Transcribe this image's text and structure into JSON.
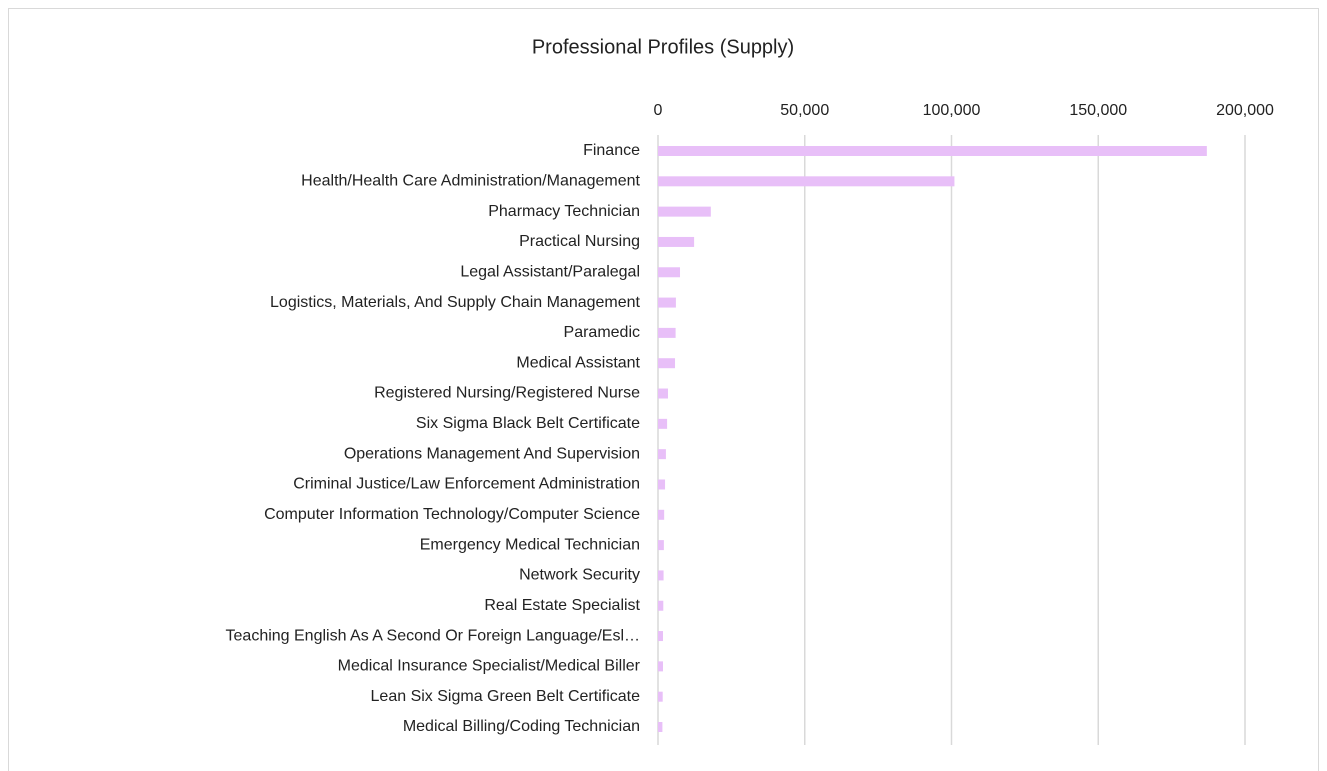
{
  "chart_data": {
    "type": "bar",
    "orientation": "horizontal",
    "title": "Professional Profiles (Supply)",
    "categories": [
      "Finance",
      "Health/Health Care Administration/Management",
      "Pharmacy Technician",
      "Practical Nursing",
      "Legal Assistant/Paralegal",
      "Logistics, Materials, And Supply Chain Management",
      "Paramedic",
      "Medical Assistant",
      "Registered Nursing/Registered Nurse",
      "Six Sigma Black Belt Certificate",
      "Operations Management And Supervision",
      "Criminal Justice/Law Enforcement Administration",
      "Computer Information Technology/Computer Science",
      "Emergency Medical Technician",
      "Network Security",
      "Real Estate Specialist",
      "Teaching English As A Second Or Foreign Language/Esl…",
      "Medical Insurance Specialist/Medical Biller",
      "Lean Six Sigma Green Belt Certificate",
      "Medical Billing/Coding Technician"
    ],
    "values": [
      187000,
      101000,
      18000,
      12300,
      7500,
      6100,
      6000,
      5800,
      3400,
      3100,
      2700,
      2400,
      2100,
      2000,
      1900,
      1800,
      1700,
      1700,
      1600,
      1500
    ],
    "color": "#e8bff8",
    "xlim": [
      0,
      200000
    ],
    "xticks": [
      0,
      {
        "value": 50000,
        "label": "50,000"
      },
      {
        "value": 100000,
        "label": "100,000"
      },
      {
        "value": 150000,
        "label": "150,000"
      },
      {
        "value": 200000,
        "label": "200,000"
      }
    ],
    "grid": true
  }
}
